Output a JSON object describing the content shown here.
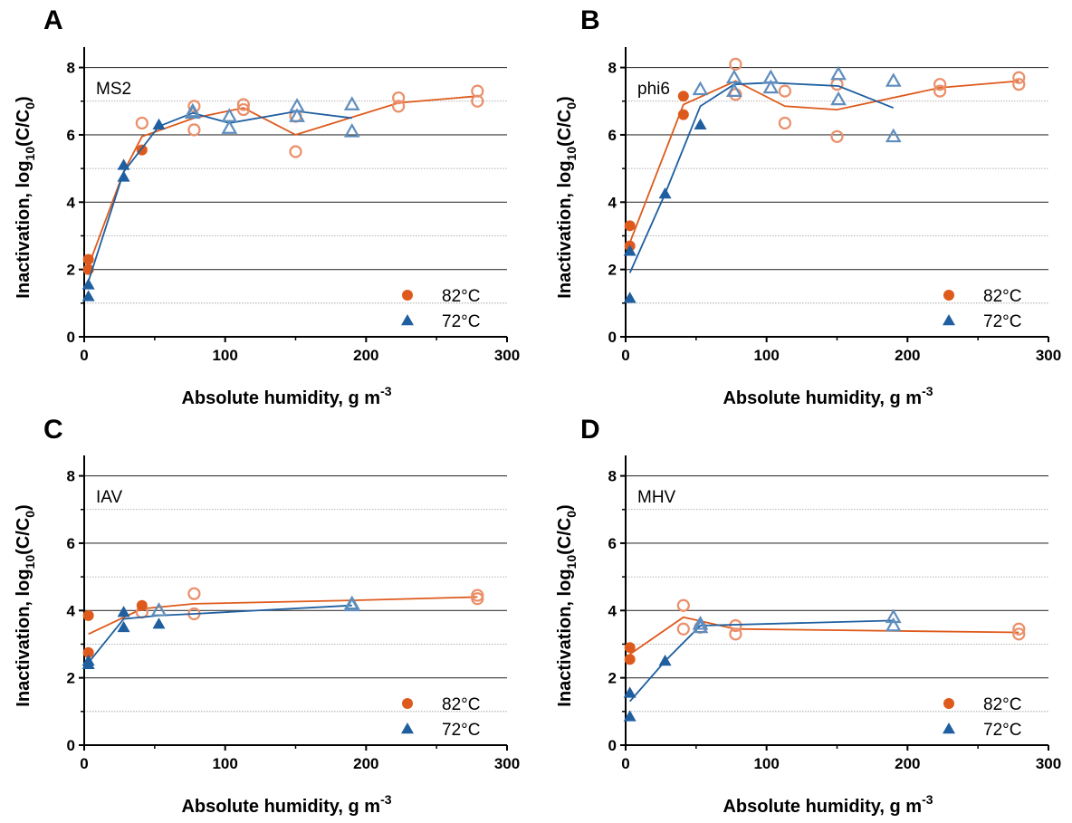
{
  "colors": {
    "s82": "#de5a1c",
    "s82_open": "#ea8f6a",
    "s72": "#1f5fa0",
    "s72_open": "#5f8dbd"
  },
  "chart_data": [
    {
      "panel": "A",
      "virus": "MS2",
      "type": "scatter",
      "xlabel": "Absolute humidity, g m",
      "xlabel_sup": "-3",
      "ylabel_prefix": "Inactivation, log",
      "ylabel_sub10": "10",
      "ylabel_mid": "(C/C",
      "ylabel_sub0": "0",
      "ylabel_end": ")",
      "xlim": [
        0,
        300
      ],
      "ylim": [
        0,
        8.5
      ],
      "xticks": [
        0,
        100,
        200,
        300
      ],
      "xtick_labels": [
        "0",
        "100",
        "200",
        "300"
      ],
      "yticks": [
        0,
        2,
        4,
        6,
        8
      ],
      "ytick_labels": [
        "0",
        "2",
        "4",
        "6",
        "8"
      ],
      "legend": "bottom-right",
      "series": [
        {
          "name": "82°C",
          "marker": "circle",
          "filled": [
            [
              3,
              2.3
            ],
            [
              3,
              2.0
            ],
            [
              41,
              5.55
            ]
          ],
          "open": [
            [
              41,
              6.35
            ],
            [
              78,
              6.85
            ],
            [
              78,
              6.15
            ],
            [
              113,
              6.9
            ],
            [
              113,
              6.75
            ],
            [
              150,
              6.55
            ],
            [
              150,
              5.5
            ],
            [
              223,
              7.1
            ],
            [
              223,
              6.85
            ],
            [
              279,
              7.3
            ],
            [
              279,
              7.0
            ]
          ],
          "fit": [
            [
              3,
              2.1
            ],
            [
              28,
              4.9
            ],
            [
              41,
              5.95
            ],
            [
              78,
              6.5
            ],
            [
              113,
              6.8
            ],
            [
              150,
              6.0
            ],
            [
              223,
              6.95
            ],
            [
              279,
              7.15
            ]
          ]
        },
        {
          "name": "72°C",
          "marker": "triangle",
          "filled": [
            [
              3,
              1.55
            ],
            [
              3,
              1.2
            ],
            [
              28,
              5.1
            ],
            [
              28,
              4.75
            ],
            [
              53,
              6.3
            ]
          ],
          "open": [
            [
              77,
              6.7
            ],
            [
              77,
              6.65
            ],
            [
              103,
              6.55
            ],
            [
              103,
              6.2
            ],
            [
              151,
              6.85
            ],
            [
              151,
              6.55
            ],
            [
              190,
              6.9
            ],
            [
              190,
              6.1
            ]
          ],
          "fit": [
            [
              3,
              1.65
            ],
            [
              28,
              4.9
            ],
            [
              53,
              6.25
            ],
            [
              77,
              6.65
            ],
            [
              103,
              6.35
            ],
            [
              151,
              6.7
            ],
            [
              190,
              6.5
            ]
          ]
        }
      ]
    },
    {
      "panel": "B",
      "virus": "phi6",
      "type": "scatter",
      "xlabel": "Absolute humidity, g m",
      "xlabel_sup": "-3",
      "ylabel_prefix": "Inactivation, log",
      "ylabel_sub10": "10",
      "ylabel_mid": "(C/C",
      "ylabel_sub0": "0",
      "ylabel_end": ")",
      "xlim": [
        0,
        300
      ],
      "ylim": [
        0,
        8.5
      ],
      "xticks": [
        0,
        100,
        200,
        300
      ],
      "xtick_labels": [
        "0",
        "100",
        "200",
        "300"
      ],
      "yticks": [
        0,
        2,
        4,
        6,
        8
      ],
      "ytick_labels": [
        "0",
        "2",
        "4",
        "6",
        "8"
      ],
      "legend": "bottom-right",
      "series": [
        {
          "name": "82°C",
          "marker": "circle",
          "filled": [
            [
              3,
              3.3
            ],
            [
              3,
              2.7
            ],
            [
              41,
              7.15
            ],
            [
              41,
              6.6
            ]
          ],
          "open": [
            [
              78,
              8.1
            ],
            [
              78,
              7.2
            ],
            [
              113,
              7.3
            ],
            [
              113,
              6.35
            ],
            [
              150,
              7.5
            ],
            [
              150,
              5.95
            ],
            [
              223,
              7.5
            ],
            [
              223,
              7.3
            ],
            [
              279,
              7.7
            ],
            [
              279,
              7.5
            ]
          ],
          "fit": [
            [
              3,
              2.8
            ],
            [
              41,
              6.9
            ],
            [
              78,
              7.6
            ],
            [
              113,
              6.85
            ],
            [
              150,
              6.75
            ],
            [
              223,
              7.4
            ],
            [
              279,
              7.6
            ]
          ]
        },
        {
          "name": "72°C",
          "marker": "triangle",
          "filled": [
            [
              3,
              2.55
            ],
            [
              3,
              1.15
            ],
            [
              28,
              4.25
            ],
            [
              53,
              6.3
            ]
          ],
          "open": [
            [
              53,
              7.35
            ],
            [
              77,
              7.7
            ],
            [
              77,
              7.3
            ],
            [
              103,
              7.7
            ],
            [
              103,
              7.4
            ],
            [
              151,
              7.8
            ],
            [
              151,
              7.05
            ],
            [
              190,
              7.6
            ],
            [
              190,
              5.95
            ]
          ],
          "fit": [
            [
              3,
              1.9
            ],
            [
              28,
              4.25
            ],
            [
              53,
              6.85
            ],
            [
              77,
              7.5
            ],
            [
              103,
              7.55
            ],
            [
              151,
              7.45
            ],
            [
              190,
              6.8
            ]
          ]
        }
      ]
    },
    {
      "panel": "C",
      "virus": "IAV",
      "type": "scatter",
      "xlabel": "Absolute humidity, g m",
      "xlabel_sup": "-3",
      "ylabel_prefix": "Inactivation, log",
      "ylabel_sub10": "10",
      "ylabel_mid": "(C/C",
      "ylabel_sub0": "0",
      "ylabel_end": ")",
      "xlim": [
        0,
        300
      ],
      "ylim": [
        0,
        8.5
      ],
      "xticks": [
        0,
        100,
        200,
        300
      ],
      "xtick_labels": [
        "0",
        "100",
        "200",
        "300"
      ],
      "yticks": [
        0,
        2,
        4,
        6,
        8
      ],
      "ytick_labels": [
        "0",
        "2",
        "4",
        "6",
        "8"
      ],
      "legend": "bottom-right",
      "series": [
        {
          "name": "82°C",
          "marker": "circle",
          "filled": [
            [
              3,
              3.85
            ],
            [
              3,
              2.75
            ],
            [
              41,
              4.15
            ]
          ],
          "open": [
            [
              41,
              3.95
            ],
            [
              78,
              4.5
            ],
            [
              78,
              3.9
            ],
            [
              279,
              4.45
            ],
            [
              279,
              4.35
            ]
          ],
          "fit": [
            [
              3,
              3.3
            ],
            [
              41,
              4.05
            ],
            [
              78,
              4.2
            ],
            [
              190,
              4.3
            ],
            [
              279,
              4.4
            ]
          ]
        },
        {
          "name": "72°C",
          "marker": "triangle",
          "filled": [
            [
              3,
              2.5
            ],
            [
              3,
              2.4
            ],
            [
              28,
              3.95
            ],
            [
              28,
              3.5
            ],
            [
              53,
              3.6
            ]
          ],
          "open": [
            [
              53,
              4.0
            ],
            [
              190,
              4.2
            ],
            [
              190,
              4.15
            ]
          ],
          "fit": [
            [
              3,
              2.45
            ],
            [
              28,
              3.75
            ],
            [
              53,
              3.85
            ],
            [
              78,
              3.9
            ],
            [
              190,
              4.15
            ]
          ]
        }
      ]
    },
    {
      "panel": "D",
      "virus": "MHV",
      "type": "scatter",
      "xlabel": "Absolute humidity, g m",
      "xlabel_sup": "-3",
      "ylabel_prefix": "Inactivation, log",
      "ylabel_sub10": "10",
      "ylabel_mid": "(C/C",
      "ylabel_sub0": "0",
      "ylabel_end": ")",
      "xlim": [
        0,
        300
      ],
      "ylim": [
        0,
        8.5
      ],
      "xticks": [
        0,
        100,
        200,
        300
      ],
      "xtick_labels": [
        "0",
        "100",
        "200",
        "300"
      ],
      "yticks": [
        0,
        2,
        4,
        6,
        8
      ],
      "ytick_labels": [
        "0",
        "2",
        "4",
        "6",
        "8"
      ],
      "legend": "bottom-right",
      "series": [
        {
          "name": "82°C",
          "marker": "circle",
          "filled": [
            [
              3,
              2.9
            ],
            [
              3,
              2.55
            ]
          ],
          "open": [
            [
              41,
              4.15
            ],
            [
              41,
              3.45
            ],
            [
              53,
              3.5
            ],
            [
              78,
              3.55
            ],
            [
              78,
              3.3
            ],
            [
              279,
              3.45
            ],
            [
              279,
              3.3
            ]
          ],
          "fit": [
            [
              3,
              2.7
            ],
            [
              41,
              3.8
            ],
            [
              78,
              3.45
            ],
            [
              279,
              3.35
            ]
          ]
        },
        {
          "name": "72°C",
          "marker": "triangle",
          "filled": [
            [
              3,
              1.55
            ],
            [
              3,
              0.85
            ],
            [
              28,
              2.5
            ]
          ],
          "open": [
            [
              53,
              3.6
            ],
            [
              53,
              3.5
            ],
            [
              190,
              3.8
            ],
            [
              190,
              3.55
            ]
          ],
          "fit": [
            [
              3,
              1.3
            ],
            [
              28,
              2.5
            ],
            [
              53,
              3.55
            ],
            [
              190,
              3.7
            ]
          ]
        }
      ]
    }
  ]
}
